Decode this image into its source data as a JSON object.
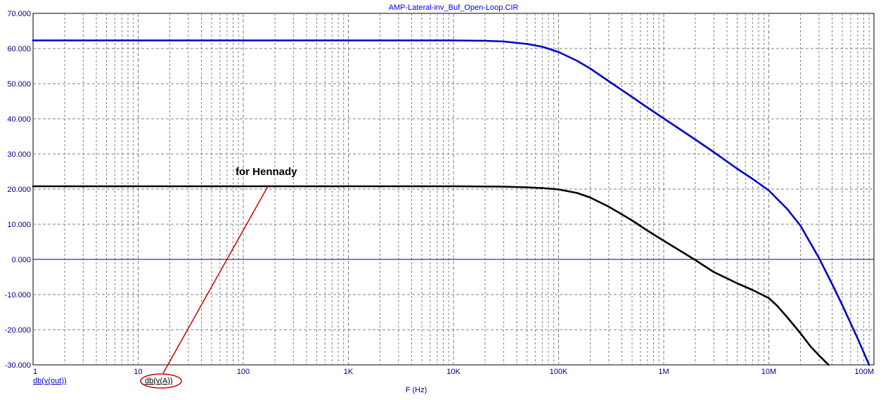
{
  "chart_data": {
    "type": "line",
    "title": "AMP-Lateral-inv_Buf_Open-Loop.CIR",
    "xlabel": "F (Hz)",
    "ylabel": "",
    "xscale": "log",
    "xlim": [
      1,
      100000000
    ],
    "ylim": [
      -30,
      70
    ],
    "grid": true,
    "yticks": [
      70,
      60,
      50,
      40,
      30,
      20,
      10,
      0,
      -10,
      -20,
      -30
    ],
    "ytick_labels": [
      "70.000",
      "60.000",
      "50.000",
      "40.000",
      "30.000",
      "20.000",
      "10.000",
      "0.000",
      "-10.000",
      "-20.000",
      "-30.000"
    ],
    "xticks": [
      1,
      10,
      100,
      1000,
      10000,
      100000,
      1000000,
      10000000,
      100000000
    ],
    "xtick_labels": [
      "1",
      "10",
      "100",
      "1K",
      "10K",
      "100K",
      "1M",
      "10M",
      "100M"
    ],
    "series": [
      {
        "name": "db(v(out))",
        "color": "#0000cc",
        "x": [
          1,
          10,
          100,
          1000,
          10000,
          20000,
          30000,
          50000,
          70000,
          100000,
          150000,
          200000,
          300000,
          500000,
          700000,
          1000000,
          1500000,
          2000000,
          3000000,
          5000000,
          7000000,
          10000000,
          15000000,
          20000000,
          30000000,
          40000000,
          50000000,
          70000000,
          90000000
        ],
        "y": [
          62.3,
          62.3,
          62.3,
          62.3,
          62.3,
          62.2,
          62.0,
          61.3,
          60.5,
          59.0,
          56.5,
          54.3,
          50.7,
          46.2,
          43.2,
          40.1,
          36.6,
          34.1,
          30.5,
          25.8,
          22.9,
          19.6,
          14.3,
          9.6,
          0.4,
          -7.0,
          -13.0,
          -22.5,
          -30.0
        ]
      },
      {
        "name": "db(v(A))",
        "color": "#000000",
        "x": [
          1,
          10,
          100,
          1000,
          10000,
          30000,
          50000,
          70000,
          100000,
          150000,
          200000,
          300000,
          500000,
          700000,
          1000000,
          1500000,
          2000000,
          3000000,
          5000000,
          7000000,
          10000000,
          12000000,
          15000000,
          20000000,
          25000000,
          30000000,
          37000000
        ],
        "y": [
          20.8,
          20.8,
          20.8,
          20.8,
          20.8,
          20.7,
          20.5,
          20.3,
          19.9,
          18.9,
          17.6,
          15.0,
          11.1,
          8.2,
          5.3,
          2.1,
          -0.2,
          -3.6,
          -6.8,
          -8.7,
          -11.0,
          -13.2,
          -16.5,
          -21.0,
          -24.8,
          -27.3,
          -30.0
        ]
      }
    ],
    "legend": [
      "db(v(out))",
      "db(v(A))"
    ],
    "annotations": [
      {
        "text": "for Hennady"
      }
    ]
  }
}
